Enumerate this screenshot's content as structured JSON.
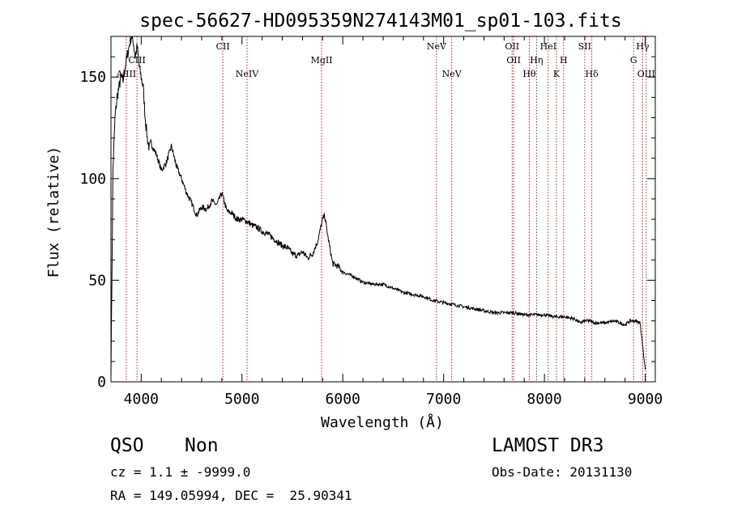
{
  "chart_data": {
    "type": "line",
    "title": "spec-56627-HD095359N274143M01_sp01-103.fits",
    "xlabel": "Wavelength (Å)",
    "ylabel": "Flux (relative)",
    "xlim": [
      3700,
      9100
    ],
    "ylim": [
      0,
      170
    ],
    "xticks": [
      4000,
      5000,
      6000,
      7000,
      8000,
      9000
    ],
    "yticks": [
      0,
      50,
      100,
      150
    ],
    "grid": false,
    "series": [
      {
        "x": [
          3700,
          3720,
          3740,
          3760,
          3780,
          3800,
          3820,
          3840,
          3860,
          3880,
          3900,
          3920,
          3940,
          3960,
          3980,
          4000,
          4020,
          4040,
          4060,
          4080,
          4100,
          4150,
          4200,
          4250,
          4300,
          4350,
          4400,
          4450,
          4500,
          4550,
          4600,
          4650,
          4700,
          4750,
          4800,
          4850,
          4900,
          4950,
          5000,
          5050,
          5100,
          5150,
          5200,
          5250,
          5300,
          5350,
          5400,
          5450,
          5500,
          5550,
          5600,
          5650,
          5700,
          5750,
          5800,
          5820,
          5850,
          5900,
          5950,
          6000,
          6100,
          6200,
          6300,
          6400,
          6500,
          6600,
          6700,
          6800,
          6900,
          7000,
          7100,
          7200,
          7300,
          7400,
          7500,
          7600,
          7700,
          7800,
          7900,
          8000,
          8100,
          8200,
          8300,
          8350,
          8400,
          8450,
          8500,
          8600,
          8700,
          8750,
          8800,
          8850,
          8900,
          8950,
          9000
        ],
        "y": [
          5,
          105,
          130,
          140,
          145,
          150,
          148,
          155,
          160,
          165,
          170,
          168,
          160,
          165,
          155,
          150,
          145,
          130,
          120,
          115,
          117,
          112,
          104,
          108,
          116,
          106,
          100,
          93,
          88,
          82,
          86,
          85,
          89,
          87,
          93,
          84,
          83,
          80,
          80,
          79,
          77,
          76,
          74,
          73,
          71,
          69,
          67,
          66,
          63,
          62,
          64,
          61,
          63,
          69,
          80,
          82,
          72,
          58,
          57,
          54,
          52,
          49,
          48,
          48,
          46,
          44,
          43,
          42,
          40,
          39,
          38,
          37,
          36,
          35,
          34,
          34,
          34,
          33,
          33,
          33,
          32,
          32,
          31,
          29,
          30,
          30,
          29,
          29,
          30,
          29,
          28,
          30,
          30,
          29,
          6
        ]
      }
    ],
    "lines": [
      {
        "label": "AlIII",
        "x": 3852,
        "row": 3
      },
      {
        "label": "CIII",
        "x": 3958,
        "row": 2
      },
      {
        "label": "CII",
        "x": 4810,
        "row": 1
      },
      {
        "label": "NeIV",
        "x": 5050,
        "row": 3
      },
      {
        "label": "MgII",
        "x": 5790,
        "row": 2
      },
      {
        "label": "NeV",
        "x": 6930,
        "row": 1
      },
      {
        "label": "NeV",
        "x": 7080,
        "row": 3
      },
      {
        "label": "OII",
        "x": 7680,
        "row": 1
      },
      {
        "label": "OII",
        "x": 7695,
        "row": 2
      },
      {
        "label": "Hθ",
        "x": 7850,
        "row": 3
      },
      {
        "label": "Hη",
        "x": 7922,
        "row": 2
      },
      {
        "label": "HeI",
        "x": 8038,
        "row": 1
      },
      {
        "label": "K",
        "x": 8120,
        "row": 3
      },
      {
        "label": "H",
        "x": 8190,
        "row": 2
      },
      {
        "label": "SII",
        "x": 8400,
        "row": 1
      },
      {
        "label": "Hδ",
        "x": 8470,
        "row": 3
      },
      {
        "label": "G",
        "x": 8885,
        "row": 2
      },
      {
        "label": "Hγ",
        "x": 8975,
        "row": 1
      },
      {
        "label": "OIII",
        "x": 9010,
        "row": 3
      }
    ],
    "colors": {
      "spectrum": "#000000",
      "line_marker": "#b22222"
    }
  },
  "info": {
    "class": "QSO",
    "subclass": "Non",
    "survey": "LAMOST DR3",
    "cz": "cz = 1.1 ± -9999.0",
    "obs_date": "Obs-Date: 20131130",
    "coords": "RA = 149.05994, DEC =  25.90341"
  }
}
